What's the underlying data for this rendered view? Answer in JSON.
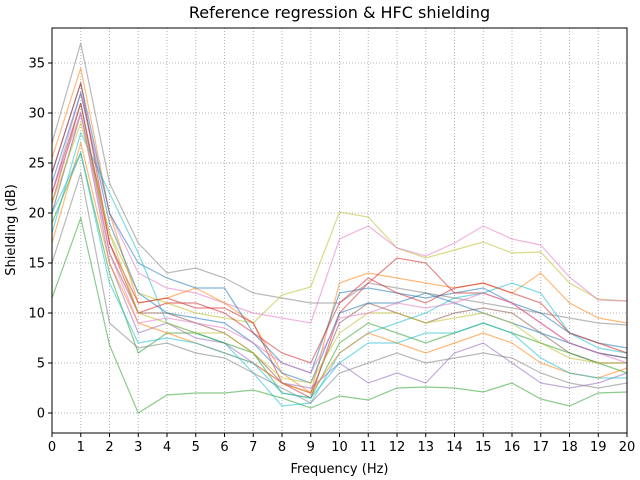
{
  "chart_data": {
    "type": "line",
    "title": "Reference regression & HFC shielding",
    "xlabel": "Frequency (Hz)",
    "ylabel": "Shielding (dB)",
    "xlim": [
      0,
      20
    ],
    "ylim": [
      -2,
      38.5
    ],
    "xticks": [
      "0",
      "1",
      "2",
      "3",
      "4",
      "5",
      "6",
      "7",
      "8",
      "9",
      "10",
      "11",
      "12",
      "13",
      "14",
      "15",
      "16",
      "17",
      "18",
      "19",
      "20"
    ],
    "yticks": [
      "0",
      "5",
      "10",
      "15",
      "20",
      "25",
      "30",
      "35"
    ],
    "grid": true,
    "grid_style": "dotted",
    "legend": "none",
    "x": [
      0,
      1,
      2,
      3,
      4,
      5,
      6,
      7,
      8,
      9,
      10,
      11,
      12,
      13,
      14,
      15,
      16,
      17,
      18,
      19,
      20
    ],
    "series": [
      {
        "color": "#7f7f7f",
        "values": [
          27,
          37,
          23,
          17,
          14,
          14.5,
          13.5,
          12,
          11.5,
          11,
          11,
          13,
          12.5,
          12,
          11.5,
          11,
          10.5,
          10,
          9.5,
          9,
          8.8
        ]
      },
      {
        "color": "#2ca02c",
        "values": [
          11.5,
          19.5,
          6.8,
          0,
          1.8,
          2,
          2,
          2.3,
          1.5,
          0.5,
          1.7,
          1.3,
          2.5,
          2.6,
          2.5,
          2.1,
          3,
          1.4,
          0.7,
          2,
          2.1
        ]
      },
      {
        "color": "#bcbd22",
        "values": [
          20,
          30,
          18,
          12,
          11,
          10,
          9.5,
          9,
          11.8,
          12.6,
          20.1,
          19.6,
          16.5,
          15.5,
          16.3,
          17.1,
          16,
          16.1,
          13,
          11.4,
          11.2
        ]
      },
      {
        "color": "#e377c2",
        "values": [
          22,
          32,
          20,
          14,
          12.5,
          12,
          11,
          10,
          9.5,
          9,
          17.4,
          18.7,
          16.5,
          15.7,
          17,
          18.7,
          17.4,
          16.8,
          13.6,
          11.3,
          11.2
        ]
      },
      {
        "color": "#ff7f0e",
        "values": [
          25.5,
          34.5,
          20,
          11,
          11.5,
          12.5,
          11,
          9,
          4,
          2,
          13,
          14,
          13.5,
          13,
          12.5,
          13,
          12,
          14,
          11,
          9.5,
          9
        ]
      },
      {
        "color": "#1f77b4",
        "values": [
          24,
          33,
          20,
          15,
          13.5,
          12.5,
          12.5,
          8,
          5,
          4,
          12,
          12.5,
          12,
          11.5,
          12,
          12.5,
          11,
          10,
          8,
          7,
          6.5
        ]
      },
      {
        "color": "#d62728",
        "values": [
          21,
          31,
          17,
          11,
          11.5,
          10.5,
          10.5,
          9,
          3,
          1.5,
          10,
          13,
          15.5,
          15,
          12,
          12,
          11,
          9,
          7,
          6,
          5.5
        ]
      },
      {
        "color": "#17becf",
        "values": [
          18,
          28,
          22,
          16,
          9,
          8,
          7,
          4,
          0.7,
          1,
          6,
          8,
          9,
          10,
          11.5,
          12,
          13,
          12,
          8,
          6.5,
          6
        ]
      },
      {
        "color": "#9467bd",
        "values": [
          20,
          30,
          15,
          8,
          9,
          7.5,
          7,
          5,
          3,
          2.5,
          5,
          3,
          4,
          3,
          6,
          7,
          5,
          3,
          2.5,
          3,
          4
        ]
      },
      {
        "color": "#8c564b",
        "values": [
          22,
          31,
          16,
          10,
          10,
          9,
          8,
          6,
          3,
          2,
          9,
          11,
          10,
          9,
          10,
          10.5,
          10,
          8,
          6,
          5,
          5
        ]
      },
      {
        "color": "#2ca02c",
        "values": [
          19,
          26,
          14,
          6,
          8,
          8,
          7,
          6,
          2,
          1.5,
          7,
          9,
          8,
          7,
          8,
          9,
          8,
          7,
          6,
          5,
          4
        ]
      },
      {
        "color": "#1f77b4",
        "values": [
          23,
          32,
          19,
          12,
          10,
          9.5,
          9,
          7,
          4,
          3,
          10,
          11,
          11,
          12,
          11,
          10,
          9,
          8,
          7,
          6,
          5.5
        ]
      },
      {
        "color": "#ff7f0e",
        "values": [
          17,
          27,
          15,
          9,
          8,
          7,
          6,
          5,
          3,
          2,
          6,
          8,
          7,
          6,
          7,
          8,
          7,
          5,
          4,
          3.5,
          4.5
        ]
      },
      {
        "color": "#d62728",
        "values": [
          24,
          33,
          17,
          10,
          11,
          11,
          10,
          8,
          6,
          5,
          11,
          13.5,
          12,
          11,
          12.5,
          13,
          12,
          11,
          8,
          7,
          6
        ]
      },
      {
        "color": "#7f7f7f",
        "values": [
          15,
          24,
          9,
          6.5,
          7,
          6,
          5.5,
          4,
          2.5,
          1,
          4,
          5,
          6,
          5,
          5.5,
          6,
          5.5,
          4,
          3,
          2.5,
          3
        ]
      },
      {
        "color": "#bcbd22",
        "values": [
          21,
          29,
          18,
          10,
          9,
          8,
          8,
          6,
          3.5,
          3,
          8,
          10,
          10,
          9,
          9.5,
          10,
          9,
          7,
          5.5,
          5,
          5
        ]
      },
      {
        "color": "#17becf",
        "values": [
          20,
          26,
          13,
          7,
          7.5,
          7,
          6,
          5,
          2,
          1.5,
          5,
          7,
          7,
          8,
          8,
          9,
          8,
          5.5,
          4,
          3.5,
          3.5
        ]
      },
      {
        "color": "#e377c2",
        "values": [
          22,
          30,
          16,
          9,
          9.5,
          9,
          8.5,
          7,
          5,
          4,
          9.5,
          10,
          11,
          10.5,
          11,
          12,
          11,
          9,
          7,
          6,
          5
        ]
      }
    ]
  }
}
